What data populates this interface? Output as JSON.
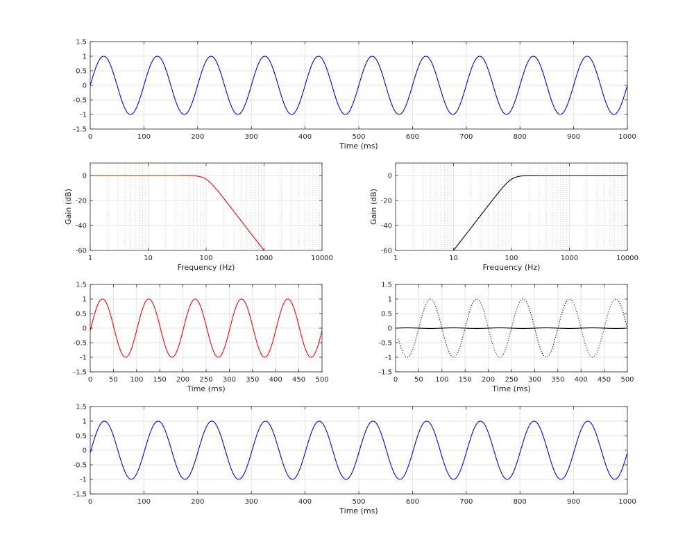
{
  "figure_title": "",
  "chart_data": [
    {
      "id": "input-signal",
      "type": "line",
      "xlabel": "Time (ms)",
      "ylabel": "",
      "xscale": "linear",
      "xlim": [
        0,
        1000
      ],
      "ylim": [
        -1.5,
        1.5
      ],
      "xticks": [
        0,
        100,
        200,
        300,
        400,
        500,
        600,
        700,
        800,
        900,
        1000
      ],
      "yticks": [
        -1.5,
        -1,
        -0.5,
        0,
        0.5,
        1,
        1.5
      ],
      "xtick_labels": [
        "0",
        "100",
        "200",
        "300",
        "400",
        "500",
        "600",
        "700",
        "800",
        "900",
        "1000"
      ],
      "ytick_labels": [
        "-1.5",
        "-1",
        "-0.5",
        "0",
        "0.5",
        "1",
        "1.5"
      ],
      "grid": "major",
      "series": [
        {
          "color": "#0000ff",
          "style": "solid",
          "function": "sine",
          "frequency_hz": 10,
          "amplitude": 1,
          "phase_deg": 0,
          "x_range": [
            0,
            1000
          ]
        }
      ]
    },
    {
      "id": "lowpass-response",
      "type": "line",
      "xlabel": "Frequency (Hz)",
      "ylabel": "Gain (dB)",
      "xscale": "log",
      "xlim": [
        1,
        10000
      ],
      "ylim": [
        -60,
        10
      ],
      "xticks": [
        1,
        10,
        100,
        1000,
        10000
      ],
      "yticks": [
        -60,
        -40,
        -20,
        0
      ],
      "xtick_labels": [
        "1",
        "10",
        "100",
        "1000",
        "10000"
      ],
      "ytick_labels": [
        "-60",
        "-40",
        "-20",
        "0"
      ],
      "grid": "major+minor-x",
      "series": [
        {
          "color": "#ff0000",
          "style": "solid",
          "function": "butterworth-lowpass",
          "cutoff_hz": 100,
          "order": 3,
          "x_range": [
            1,
            10000
          ]
        }
      ]
    },
    {
      "id": "highpass-response",
      "type": "line",
      "xlabel": "Frequency (Hz)",
      "ylabel": "Gain (dB)",
      "xscale": "log",
      "xlim": [
        1,
        10000
      ],
      "ylim": [
        -60,
        10
      ],
      "xticks": [
        1,
        10,
        100,
        1000,
        10000
      ],
      "yticks": [
        -60,
        -40,
        -20,
        0
      ],
      "xtick_labels": [
        "1",
        "10",
        "100",
        "1000",
        "10000"
      ],
      "ytick_labels": [
        "-60",
        "-40",
        "-20",
        "0"
      ],
      "grid": "major+minor-x",
      "series": [
        {
          "color": "#000000",
          "style": "solid",
          "function": "butterworth-highpass",
          "cutoff_hz": 100,
          "order": 3,
          "x_range": [
            1,
            10000
          ]
        }
      ]
    },
    {
      "id": "lowpass-output",
      "type": "line",
      "xlabel": "Time (ms)",
      "ylabel": "",
      "xscale": "linear",
      "xlim": [
        0,
        500
      ],
      "ylim": [
        -1.5,
        1.5
      ],
      "xticks": [
        0,
        50,
        100,
        150,
        200,
        250,
        300,
        350,
        400,
        450,
        500
      ],
      "yticks": [
        -1.5,
        -1,
        -0.5,
        0,
        0.5,
        1,
        1.5
      ],
      "xtick_labels": [
        "0",
        "50",
        "100",
        "150",
        "200",
        "250",
        "300",
        "350",
        "400",
        "450",
        "500"
      ],
      "ytick_labels": [
        "-1.5",
        "-1",
        "-0.5",
        "0",
        "0.5",
        "1",
        "1.5"
      ],
      "grid": "major",
      "series": [
        {
          "color": "#ff0000",
          "style": "solid",
          "function": "sine",
          "frequency_hz": 10,
          "amplitude": 1,
          "phase_deg": -5,
          "x_range": [
            0,
            500
          ]
        }
      ]
    },
    {
      "id": "highpass-output",
      "type": "line",
      "xlabel": "Time (ms)",
      "ylabel": "",
      "xscale": "linear",
      "xlim": [
        0,
        500
      ],
      "ylim": [
        -1.5,
        1.5
      ],
      "xticks": [
        0,
        50,
        100,
        150,
        200,
        250,
        300,
        350,
        400,
        450,
        500
      ],
      "yticks": [
        -1.5,
        -1,
        -0.5,
        0,
        0.5,
        1,
        1.5
      ],
      "xtick_labels": [
        "0",
        "50",
        "100",
        "150",
        "200",
        "250",
        "300",
        "350",
        "400",
        "450",
        "500"
      ],
      "ytick_labels": [
        "-1.5",
        "-1",
        "-0.5",
        "0",
        "0.5",
        "1",
        "1.5"
      ],
      "grid": "major",
      "series": [
        {
          "color": "#000000",
          "style": "solid",
          "function": "sine",
          "frequency_hz": 10,
          "amplitude": 0.01,
          "phase_deg": 0,
          "x_range": [
            0,
            500
          ]
        },
        {
          "color": "#000000",
          "style": "dotted",
          "function": "sine",
          "frequency_hz": 10,
          "amplitude": 1,
          "phase_deg": 180,
          "x_range": [
            6,
            500
          ]
        }
      ]
    },
    {
      "id": "summed-output",
      "type": "line",
      "xlabel": "Time (ms)",
      "ylabel": "",
      "xscale": "linear",
      "xlim": [
        0,
        1000
      ],
      "ylim": [
        -1.5,
        1.5
      ],
      "xticks": [
        0,
        100,
        200,
        300,
        400,
        500,
        600,
        700,
        800,
        900,
        1000
      ],
      "yticks": [
        -1.5,
        -1,
        -0.5,
        0,
        0.5,
        1,
        1.5
      ],
      "xtick_labels": [
        "0",
        "100",
        "200",
        "300",
        "400",
        "500",
        "600",
        "700",
        "800",
        "900",
        "1000"
      ],
      "ytick_labels": [
        "-1.5",
        "-1",
        "-0.5",
        "0",
        "0.5",
        "1",
        "1.5"
      ],
      "grid": "major",
      "series": [
        {
          "color": "#0000ff",
          "style": "solid",
          "function": "sine",
          "frequency_hz": 10,
          "amplitude": 1,
          "phase_deg": -5,
          "x_range": [
            0,
            1000
          ]
        }
      ]
    }
  ]
}
